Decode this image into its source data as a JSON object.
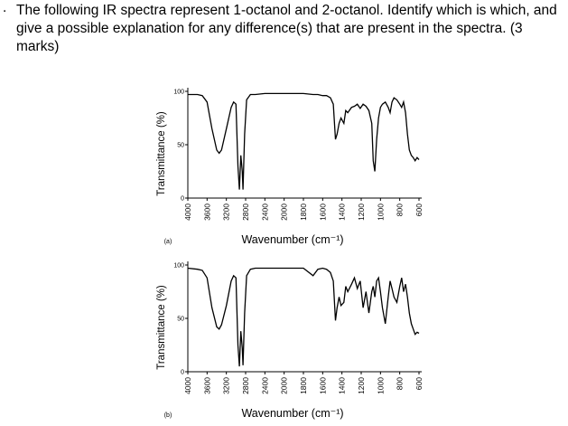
{
  "question": {
    "bullet": ".",
    "text": "The following IR spectra represent 1-octanol and 2-octanol. Identify which is which, and give a possible explanation for any difference(s) that are present in the spectra. (3 marks)"
  },
  "chart_data": [
    {
      "type": "line",
      "label": "(a)",
      "ylabel": "Transmittance (%)",
      "xlabel": "Wavenumber (cm⁻¹)",
      "xlim": [
        4000,
        600
      ],
      "ylim": [
        0,
        100
      ],
      "yticks": [
        0,
        50,
        100
      ],
      "xticks": [
        4000,
        3600,
        3200,
        2800,
        2400,
        2000,
        1800,
        1600,
        1400,
        1200,
        1000,
        800,
        600
      ],
      "x_scale_change": {
        "at": 2000,
        "factor": 2
      },
      "color": "#000000",
      "x": [
        4000,
        3800,
        3700,
        3600,
        3500,
        3400,
        3350,
        3300,
        3200,
        3100,
        3050,
        3000,
        2960,
        2930,
        2900,
        2870,
        2855,
        2820,
        2780,
        2700,
        2600,
        2400,
        2200,
        2000,
        1800,
        1700,
        1650,
        1600,
        1560,
        1520,
        1490,
        1467,
        1450,
        1430,
        1410,
        1380,
        1360,
        1340,
        1300,
        1270,
        1240,
        1210,
        1180,
        1150,
        1120,
        1090,
        1075,
        1058,
        1040,
        1020,
        1000,
        980,
        950,
        920,
        900,
        880,
        860,
        830,
        800,
        780,
        760,
        740,
        720,
        700,
        680,
        660,
        640,
        620,
        600
      ],
      "values": [
        97,
        97,
        96,
        90,
        65,
        45,
        42,
        45,
        65,
        85,
        90,
        88,
        30,
        8,
        40,
        25,
        8,
        60,
        92,
        97,
        97,
        98,
        98,
        98,
        98,
        97,
        97,
        96,
        96,
        94,
        88,
        55,
        60,
        70,
        75,
        70,
        82,
        80,
        85,
        86,
        88,
        84,
        88,
        86,
        82,
        70,
        35,
        25,
        55,
        75,
        85,
        88,
        90,
        85,
        80,
        90,
        94,
        92,
        88,
        85,
        90,
        80,
        60,
        45,
        40,
        38,
        35,
        38,
        36
      ]
    },
    {
      "type": "line",
      "label": "(b)",
      "ylabel": "Transmittance (%)",
      "xlabel": "Wavenumber (cm⁻¹)",
      "xlim": [
        4000,
        600
      ],
      "ylim": [
        0,
        100
      ],
      "yticks": [
        0,
        50,
        100
      ],
      "xticks": [
        4000,
        3600,
        3200,
        2800,
        2400,
        2000,
        1800,
        1600,
        1400,
        1200,
        1000,
        800,
        600
      ],
      "x_scale_change": {
        "at": 2000,
        "factor": 2
      },
      "color": "#000000",
      "x": [
        4000,
        3800,
        3700,
        3600,
        3500,
        3400,
        3350,
        3300,
        3200,
        3100,
        3050,
        3000,
        2960,
        2930,
        2900,
        2870,
        2855,
        2820,
        2780,
        2700,
        2600,
        2400,
        2200,
        2000,
        1800,
        1700,
        1650,
        1600,
        1560,
        1520,
        1490,
        1467,
        1450,
        1430,
        1410,
        1380,
        1360,
        1340,
        1300,
        1270,
        1240,
        1210,
        1180,
        1150,
        1120,
        1090,
        1075,
        1058,
        1040,
        1020,
        1000,
        980,
        950,
        920,
        900,
        880,
        860,
        830,
        800,
        780,
        760,
        740,
        720,
        700,
        680,
        660,
        640,
        620,
        600
      ],
      "values": [
        97,
        96,
        95,
        88,
        60,
        42,
        40,
        44,
        62,
        85,
        90,
        88,
        25,
        5,
        38,
        22,
        6,
        55,
        90,
        96,
        97,
        97,
        97,
        97,
        97,
        90,
        96,
        97,
        96,
        93,
        85,
        48,
        60,
        70,
        62,
        65,
        80,
        75,
        82,
        88,
        78,
        85,
        60,
        75,
        55,
        75,
        80,
        70,
        85,
        88,
        75,
        60,
        45,
        70,
        85,
        78,
        70,
        65,
        80,
        88,
        75,
        82,
        70,
        55,
        45,
        40,
        35,
        37,
        36
      ]
    }
  ]
}
